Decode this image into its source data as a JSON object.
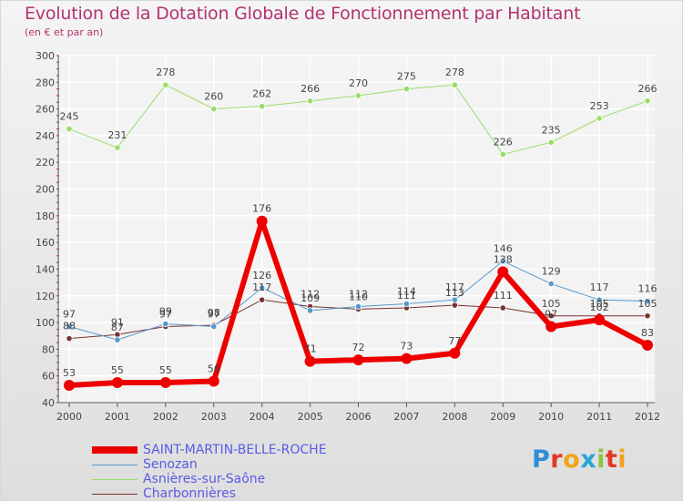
{
  "header": {
    "title": "Evolution de la Dotation Globale de Fonctionnement par Habitant",
    "subtitle": "(en € et par an)"
  },
  "logo": {
    "letters": [
      "P",
      "r",
      "o",
      "x",
      "i",
      "t",
      "i"
    ],
    "colors": [
      "#2e8fd6",
      "#e2382a",
      "#f2a51a",
      "#2aa5d8",
      "#8cc63f",
      "#e2382a",
      "#f2a51a"
    ]
  },
  "chart_data": {
    "type": "line",
    "title": "Evolution de la Dotation Globale de Fonctionnement par Habitant",
    "subtitle": "(en € et par an)",
    "xlabel": "",
    "ylabel": "",
    "ylim": [
      40,
      300
    ],
    "yticks": [
      40,
      60,
      80,
      100,
      120,
      140,
      160,
      180,
      200,
      220,
      240,
      260,
      280,
      300
    ],
    "categories": [
      "2000",
      "2001",
      "2002",
      "2003",
      "2004",
      "2005",
      "2006",
      "2007",
      "2008",
      "2009",
      "2010",
      "2011",
      "2012"
    ],
    "grid": true,
    "legend_position": "bottom-left",
    "series": [
      {
        "name": "Asnières-sur-Saône",
        "color": "#99dd66",
        "width": 1,
        "values": [
          245,
          231,
          278,
          260,
          262,
          266,
          270,
          275,
          278,
          226,
          235,
          253,
          266
        ]
      },
      {
        "name": "Charbonnières",
        "color": "#773333",
        "width": 1,
        "values": [
          88,
          91,
          97,
          98,
          117,
          112,
          110,
          111,
          113,
          111,
          105,
          105,
          105
        ]
      },
      {
        "name": "Senozan",
        "color": "#5599cc",
        "width": 1,
        "values": [
          97,
          87,
          99,
          97,
          126,
          109,
          112,
          114,
          117,
          146,
          129,
          117,
          116
        ]
      },
      {
        "name": "SAINT-MARTIN-BELLE-ROCHE",
        "color": "#ee0000",
        "width": 6,
        "values": [
          53,
          55,
          55,
          56,
          176,
          71,
          72,
          73,
          77,
          138,
          97,
          102,
          83
        ]
      }
    ],
    "point_labels": [
      {
        "series": "Asnières-sur-Saône",
        "labels": [
          "245",
          "231",
          "278",
          "260",
          "262",
          "266",
          "270",
          "275",
          "278",
          "226",
          "235",
          "253",
          "266"
        ]
      },
      {
        "series": "Charbonnières",
        "labels": [
          "88",
          "91",
          "97",
          "98",
          "117",
          "112",
          "110",
          "111",
          "113",
          "111",
          "105",
          "105",
          "105"
        ]
      },
      {
        "series": "Senozan",
        "labels": [
          "97",
          "87",
          "99",
          "97",
          "126",
          "109",
          "112",
          "114",
          "117",
          "146",
          "129",
          "117",
          "116"
        ]
      },
      {
        "series": "SAINT-MARTIN-BELLE-ROCHE",
        "labels": [
          "53",
          "55",
          "55",
          "56",
          "176",
          "71",
          "72",
          "73",
          "77",
          "138",
          "97",
          "102",
          "83"
        ]
      }
    ],
    "legend": [
      "SAINT-MARTIN-BELLE-ROCHE",
      "Senozan",
      "Asnières-sur-Saône",
      "Charbonnières"
    ]
  }
}
